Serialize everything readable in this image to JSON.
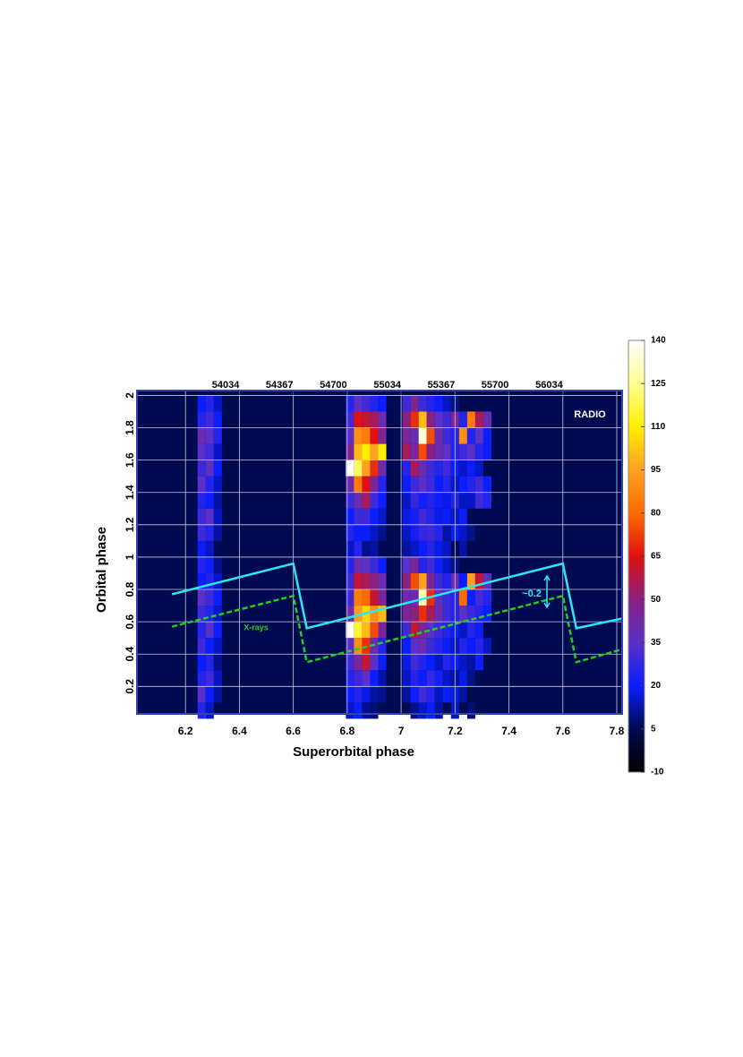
{
  "chart_data": {
    "type": "heatmap",
    "xlabel": "Superorbital phase",
    "ylabel": "Orbital phase",
    "xlim": [
      6.02,
      7.82
    ],
    "xticks": [
      6.2,
      6.4,
      6.6,
      6.8,
      7.0,
      7.2,
      7.4,
      7.6,
      7.8
    ],
    "ylim": [
      0.03,
      2.03
    ],
    "yticks": [
      0.2,
      0.4,
      0.6,
      0.8,
      1.0,
      1.2,
      1.4,
      1.6,
      1.8,
      2.0
    ],
    "x2lim": [
      53401,
      56401
    ],
    "x2ticks": [
      54034,
      54367,
      54700,
      55034,
      55367,
      55700,
      56034
    ],
    "grid": true,
    "annotations": [
      "RADIO",
      "X-rays",
      "~0.2"
    ],
    "colorbar": {
      "lim": [
        -10,
        140
      ],
      "ticks": [
        -10,
        5,
        20,
        35,
        50,
        65,
        80,
        95,
        110,
        125,
        140
      ],
      "colors": [
        "#000000",
        "#000a50",
        "#0a1eff",
        "#5a30c8",
        "#8a2080",
        "#e01010",
        "#ff6a00",
        "#ffa020",
        "#ffee00",
        "#ffff90",
        "#ffffff"
      ]
    },
    "x": [
      6.26,
      6.29,
      6.32,
      6.81,
      6.84,
      6.87,
      6.9,
      6.93,
      7.02,
      7.05,
      7.08,
      7.11,
      7.14,
      7.17,
      7.2,
      7.23,
      7.26,
      7.29,
      7.32
    ],
    "y": [
      0.05,
      0.15,
      0.25,
      0.35,
      0.45,
      0.55,
      0.65,
      0.75,
      0.85,
      0.95,
      1.05,
      1.15,
      1.25,
      1.35,
      1.45,
      1.55,
      1.65,
      1.75,
      1.85,
      1.95
    ],
    "z": [
      [
        25,
        15,
        null,
        15,
        20,
        10,
        8,
        null,
        null,
        10,
        15,
        20,
        12,
        null,
        15,
        null,
        8,
        null,
        null
      ],
      [
        35,
        20,
        12,
        20,
        25,
        18,
        12,
        10,
        12,
        20,
        30,
        25,
        15,
        20,
        18,
        12,
        null,
        null,
        null
      ],
      [
        25,
        30,
        15,
        25,
        30,
        35,
        20,
        12,
        15,
        25,
        20,
        28,
        22,
        15,
        12,
        18,
        10,
        null,
        null
      ],
      [
        20,
        25,
        10,
        30,
        45,
        60,
        35,
        20,
        18,
        30,
        25,
        20,
        15,
        25,
        20,
        15,
        12,
        20,
        null
      ],
      [
        30,
        20,
        15,
        35,
        90,
        70,
        40,
        25,
        20,
        35,
        40,
        30,
        25,
        20,
        15,
        25,
        20,
        25,
        15
      ],
      [
        25,
        35,
        20,
        140,
        115,
        100,
        75,
        45,
        30,
        60,
        45,
        35,
        30,
        25,
        20,
        15,
        25,
        20,
        null
      ],
      [
        30,
        25,
        15,
        40,
        95,
        105,
        90,
        100,
        45,
        50,
        70,
        55,
        40,
        30,
        25,
        35,
        30,
        25,
        20
      ],
      [
        35,
        30,
        20,
        30,
        85,
        80,
        60,
        45,
        40,
        40,
        130,
        70,
        35,
        30,
        25,
        80,
        20,
        30,
        25
      ],
      [
        20,
        25,
        15,
        30,
        60,
        55,
        50,
        40,
        50,
        75,
        95,
        45,
        30,
        25,
        40,
        20,
        95,
        60,
        35
      ],
      [
        25,
        20,
        10,
        25,
        40,
        35,
        30,
        20,
        35,
        45,
        25,
        30,
        20,
        15,
        10,
        null,
        null,
        null,
        null
      ],
      [
        20,
        15,
        null,
        15,
        25,
        10,
        12,
        null,
        12,
        15,
        20,
        25,
        18,
        15,
        null,
        12,
        null,
        null,
        null
      ],
      [
        30,
        25,
        12,
        25,
        20,
        20,
        15,
        10,
        15,
        22,
        28,
        30,
        25,
        12,
        20,
        15,
        10,
        null,
        null
      ],
      [
        30,
        35,
        15,
        20,
        30,
        30,
        20,
        15,
        18,
        22,
        30,
        25,
        18,
        20,
        15,
        20,
        null,
        null,
        null
      ],
      [
        25,
        20,
        12,
        30,
        40,
        55,
        30,
        20,
        15,
        28,
        22,
        25,
        20,
        18,
        25,
        15,
        15,
        30,
        25
      ],
      [
        35,
        25,
        15,
        40,
        85,
        65,
        45,
        25,
        20,
        30,
        35,
        30,
        20,
        25,
        15,
        20,
        25,
        30,
        20
      ],
      [
        30,
        35,
        20,
        140,
        120,
        95,
        70,
        40,
        25,
        55,
        40,
        30,
        25,
        30,
        20,
        15,
        20,
        15,
        null
      ],
      [
        35,
        30,
        15,
        45,
        100,
        110,
        95,
        110,
        55,
        45,
        75,
        50,
        40,
        35,
        25,
        30,
        35,
        25,
        20
      ],
      [
        40,
        35,
        25,
        35,
        90,
        85,
        65,
        45,
        45,
        40,
        135,
        75,
        40,
        30,
        25,
        90,
        25,
        35,
        20
      ],
      [
        25,
        30,
        20,
        30,
        65,
        60,
        55,
        40,
        50,
        70,
        100,
        50,
        35,
        30,
        45,
        25,
        85,
        55,
        40
      ],
      [
        20,
        25,
        15,
        25,
        35,
        30,
        25,
        20,
        30,
        45,
        30,
        25,
        20,
        15,
        10,
        null,
        null,
        null,
        null
      ]
    ],
    "series": [
      {
        "color": "#2ee6f0",
        "dash": false,
        "x": [
          6.15,
          6.6,
          6.65,
          7.6,
          7.65,
          7.82
        ],
        "values": [
          0.77,
          0.96,
          0.56,
          0.96,
          0.56,
          0.62
        ]
      },
      {
        "color": "#22cc22",
        "dash": true,
        "x": [
          6.15,
          6.6,
          6.65,
          7.6,
          7.65,
          7.82
        ],
        "values": [
          0.57,
          0.76,
          0.35,
          0.76,
          0.35,
          0.43
        ]
      }
    ]
  }
}
